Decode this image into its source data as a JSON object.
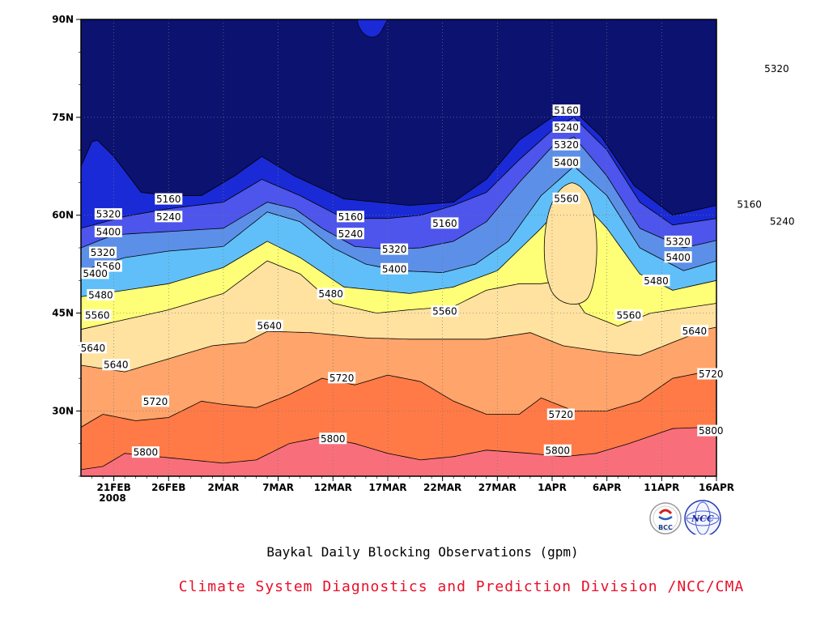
{
  "chart_data": {
    "type": "contour",
    "caption": "Baykal Daily Blocking Observations (gpm)",
    "organization": "Climate System Diagnostics and Prediction Division /NCC/CMA",
    "x_ticks": [
      "21FEB",
      "26FEB",
      "2MAR",
      "7MAR",
      "12MAR",
      "17MAR",
      "22MAR",
      "27MAR",
      "1APR",
      "6APR",
      "11APR",
      "16APR"
    ],
    "x_year_label": "2008",
    "x_range": [
      "18FEB2008",
      "16APR2008"
    ],
    "y_ticks": [
      "30N",
      "45N",
      "60N",
      "75N",
      "90N"
    ],
    "y_range_deg": [
      20,
      90
    ],
    "grid": "dotted",
    "levels": [
      5160,
      5240,
      5320,
      5400,
      5480,
      5560,
      5640,
      5720,
      5800
    ],
    "contour_labels": [
      {
        "text": "5160",
        "date_index": 8,
        "lat": 62.5
      },
      {
        "text": "5240",
        "date_index": 8,
        "lat": 59.8
      },
      {
        "text": "5320",
        "date_index": 2.5,
        "lat": 60.2
      },
      {
        "text": "5400",
        "date_index": 2.5,
        "lat": 57.5
      },
      {
        "text": "5560",
        "date_index": 2.5,
        "lat": 52.2
      },
      {
        "text": "5160",
        "date_index": 24.6,
        "lat": 59.8
      },
      {
        "text": "5240",
        "date_index": 24.6,
        "lat": 57.2
      },
      {
        "text": "5320",
        "date_index": 28.6,
        "lat": 54.8
      },
      {
        "text": "5400",
        "date_index": 28.6,
        "lat": 51.8
      },
      {
        "text": "5480",
        "date_index": 22.8,
        "lat": 48.0
      },
      {
        "text": "5560",
        "date_index": 33.2,
        "lat": 45.3
      },
      {
        "text": "5640",
        "date_index": 17.2,
        "lat": 43.1
      },
      {
        "text": "5640",
        "date_index": 3.2,
        "lat": 37.1
      },
      {
        "text": "5720",
        "date_index": 23.8,
        "lat": 35.1
      },
      {
        "text": "5720",
        "date_index": 6.8,
        "lat": 31.5
      },
      {
        "text": "5800",
        "date_index": 5.9,
        "lat": 23.7
      },
      {
        "text": "5800",
        "date_index": 23.0,
        "lat": 25.8
      },
      {
        "text": "5320",
        "date_index": 2.0,
        "lat": 54.3
      },
      {
        "text": "5400",
        "date_index": 1.3,
        "lat": 51.1
      },
      {
        "text": "5480",
        "date_index": 1.8,
        "lat": 47.8
      },
      {
        "text": "5560",
        "date_index": 1.5,
        "lat": 44.7
      },
      {
        "text": "5640",
        "date_index": 1.1,
        "lat": 39.7
      },
      {
        "text": "5160",
        "date_index": 44.3,
        "lat": 76.1
      },
      {
        "text": "5240",
        "date_index": 44.3,
        "lat": 73.5
      },
      {
        "text": "5320",
        "date_index": 44.3,
        "lat": 70.8
      },
      {
        "text": "5400",
        "date_index": 44.3,
        "lat": 68.1
      },
      {
        "text": "5560",
        "date_index": 44.3,
        "lat": 62.6
      },
      {
        "text": "5160",
        "date_index": 33.2,
        "lat": 58.8
      },
      {
        "text": "5320",
        "date_index": 54.5,
        "lat": 56.0
      },
      {
        "text": "5400",
        "date_index": 54.5,
        "lat": 53.6
      },
      {
        "text": "5480",
        "date_index": 52.5,
        "lat": 50.0
      },
      {
        "text": "5560",
        "date_index": 50.0,
        "lat": 44.7
      },
      {
        "text": "5640",
        "date_index": 56.0,
        "lat": 42.3
      },
      {
        "text": "5720",
        "date_index": 57.5,
        "lat": 35.7
      },
      {
        "text": "5800",
        "date_index": 57.5,
        "lat": 27.0
      },
      {
        "text": "5720",
        "date_index": 43.8,
        "lat": 29.5
      },
      {
        "text": "5800",
        "date_index": 43.5,
        "lat": 24.0
      },
      {
        "text": "5160",
        "date_index": 61.0,
        "lat": 61.7
      },
      {
        "text": "5240",
        "date_index": 64.0,
        "lat": 59.1
      },
      {
        "text": "5320",
        "date_index": 63.5,
        "lat": 82.5
      }
    ],
    "colors": {
      "lt5160": "#0b1270",
      "5160-5240": "#1a2ad6",
      "5240-5320": "#4d55ec",
      "5320-5400": "#5c8fe8",
      "5400-5480": "#60bff8",
      "5480-5560": "#ffff77",
      "5560-5640": "#ffe2a0",
      "5640-5720": "#ffa46a",
      "5720-5800": "#ff7a46",
      "gt5800": "#f86f7b"
    }
  },
  "logos": [
    {
      "name": "bcc-logo",
      "text": "BCC"
    },
    {
      "name": "ncc-logo",
      "text": "NCC"
    }
  ]
}
